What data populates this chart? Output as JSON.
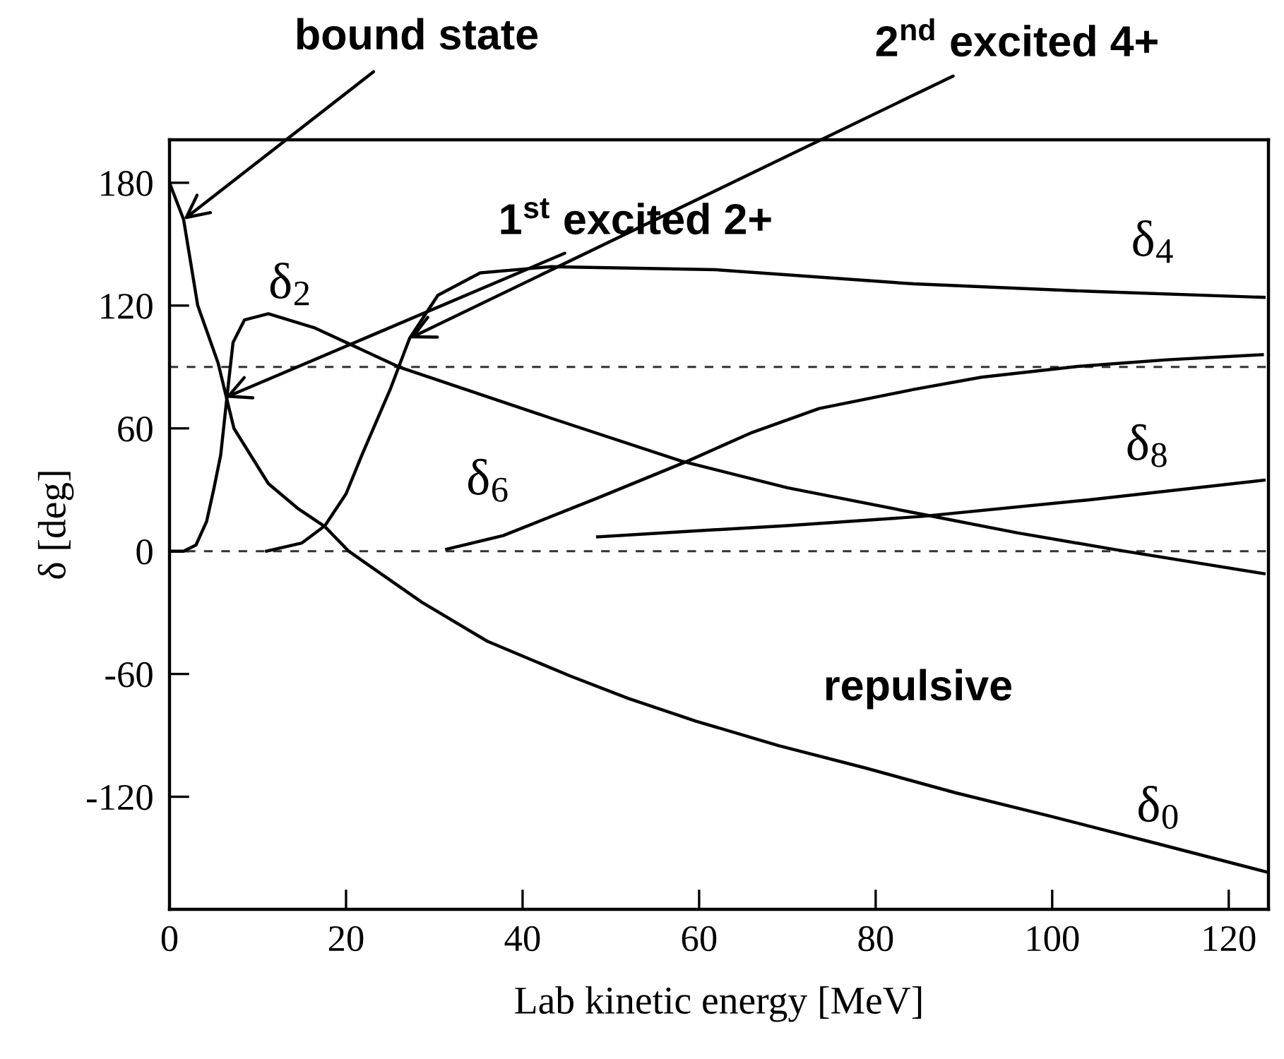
{
  "chart_data": {
    "type": "line",
    "xlabel": "Lab kinetic energy [MeV]",
    "ylabel": "δ [deg]",
    "xlim": [
      0,
      124.5
    ],
    "ylim": [
      -175,
      201
    ],
    "xticks": [
      0,
      20,
      40,
      60,
      80,
      100,
      120
    ],
    "yticks": [
      -120,
      -60,
      0,
      60,
      120,
      180
    ],
    "grid": false,
    "marker": "none",
    "line_style": "solid",
    "series": [
      {
        "name": "δ$_{0}$",
        "color": "#000000",
        "x": [
          0,
          1.6,
          3.2,
          5.5,
          7.3,
          11.2,
          14.5,
          17.6,
          20.3,
          28.6,
          36,
          45.4,
          52,
          59.6,
          69,
          78.9,
          89,
          99.8,
          112,
          124.5
        ],
        "values": [
          180,
          162,
          120,
          92,
          60,
          33,
          21,
          12,
          0,
          -25,
          -44,
          -61,
          -72,
          -83,
          -95,
          -106,
          -118,
          -129.5,
          -143,
          -157
        ]
      },
      {
        "name": "δ$_{2}$",
        "color": "#000000",
        "x": [
          0,
          1.6,
          3,
          4.2,
          5,
          5.8,
          6.6,
          7.2,
          8.5,
          11.2,
          16.5,
          26,
          43.2,
          58,
          70,
          85.3,
          96,
          107.2,
          124
        ],
        "values": [
          0,
          0,
          3,
          14.5,
          30,
          47,
          79,
          102,
          113,
          116,
          109,
          90,
          65,
          44,
          31,
          18,
          9,
          0.7,
          -11
        ]
      },
      {
        "name": "δ$_{4}$",
        "color": "#000000",
        "x": [
          11,
          15,
          17.6,
          20,
          21.8,
          25,
          27.2,
          30.4,
          35.2,
          43.2,
          61.9,
          84.3,
          104,
          124
        ],
        "values": [
          0,
          4,
          12.4,
          28,
          47,
          79,
          104,
          125,
          136,
          139,
          137.5,
          130.6,
          127,
          124
        ]
      },
      {
        "name": "δ$_{6}$",
        "color": "#000000",
        "x": [
          31.4,
          37.8,
          48.5,
          58.7,
          66,
          73.6,
          84.3,
          92,
          102.9,
          113,
          123.8
        ],
        "values": [
          1,
          7.6,
          26,
          44,
          58,
          69.7,
          79,
          85,
          90.3,
          93.5,
          96
        ]
      },
      {
        "name": "δ$_{8}$",
        "color": "#000000",
        "x": [
          48.5,
          57.6,
          70,
          85.3,
          104,
          124
        ],
        "values": [
          7,
          9.4,
          12.5,
          17,
          25,
          34.7
        ]
      }
    ],
    "ref_lines": [
      {
        "axis": "y",
        "value": 0,
        "color": "#333333",
        "line_style": "dashed"
      },
      {
        "axis": "y",
        "value": 90,
        "color": "#333333",
        "line_style": "dashed"
      }
    ],
    "annotations": [
      {
        "text": "bound state",
        "x": 1.6,
        "y": 162
      },
      {
        "text": "1$^{st}$ excited 2+",
        "x": 6.3,
        "y": 75
      },
      {
        "text": "2$^{nd}$ excited 4+",
        "x": 27.2,
        "y": 104
      },
      "repulsive"
    ]
  }
}
